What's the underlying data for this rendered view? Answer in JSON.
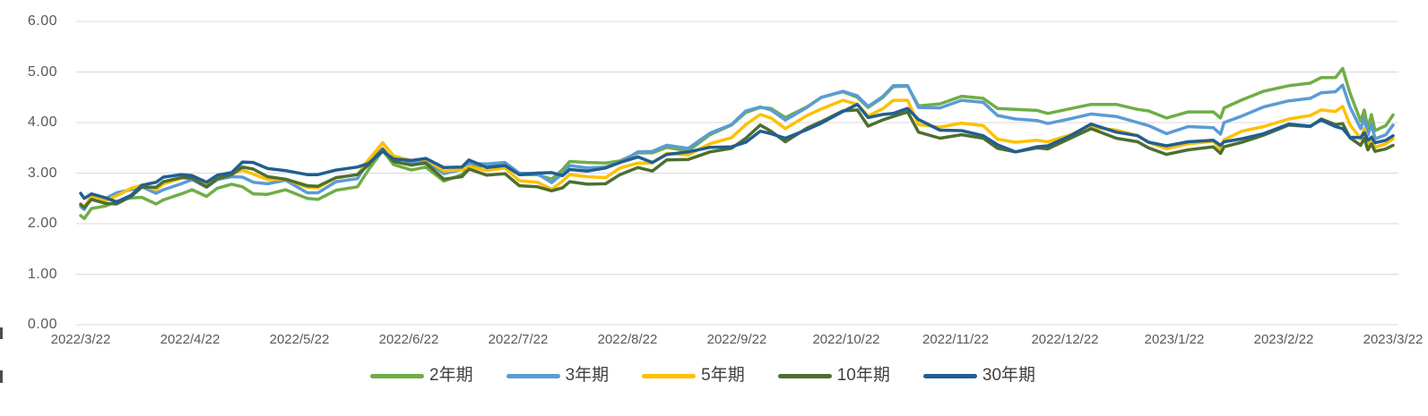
{
  "chart_data": {
    "type": "line",
    "title": "",
    "grid": "horizontal",
    "legend_position": "bottom",
    "ylim": [
      0,
      6
    ],
    "y_ticks": [
      {
        "value": 6,
        "label": "6.00"
      },
      {
        "value": 5,
        "label": "5.00"
      },
      {
        "value": 4,
        "label": "4.00"
      },
      {
        "value": 3,
        "label": "3.00"
      },
      {
        "value": 2,
        "label": "2.00"
      },
      {
        "value": 1,
        "label": "1.00"
      },
      {
        "value": 0,
        "label": "0.00"
      }
    ],
    "x_tick_labels": [
      "2022/3/22",
      "2022/4/22",
      "2022/5/22",
      "2022/6/22",
      "2022/7/22",
      "2022/8/22",
      "2022/9/22",
      "2022/10/22",
      "2022/11/22",
      "2022/12/22",
      "2023/1/22",
      "2023/2/22",
      "2023/3/22"
    ],
    "x_domain_days": [
      0,
      365
    ],
    "days": [
      0,
      1,
      3,
      7,
      10,
      14,
      17,
      21,
      23,
      28,
      31,
      35,
      38,
      42,
      45,
      48,
      52,
      57,
      63,
      66,
      71,
      77,
      80,
      84,
      87,
      92,
      96,
      101,
      106,
      108,
      113,
      118,
      122,
      127,
      131,
      134,
      136,
      141,
      146,
      150,
      155,
      159,
      163,
      169,
      175,
      181,
      185,
      189,
      192,
      196,
      202,
      206,
      212,
      216,
      219,
      223,
      226,
      230,
      233,
      239,
      245,
      251,
      255,
      260,
      266,
      269,
      275,
      281,
      288,
      294,
      297,
      302,
      308,
      315,
      317,
      318,
      323,
      329,
      336,
      342,
      345,
      349,
      351,
      353,
      356,
      357,
      358,
      359,
      360,
      363,
      365
    ],
    "series": [
      {
        "name": "2年期",
        "color": "#70AD47",
        "values": [
          2.16,
          2.1,
          2.3,
          2.35,
          2.44,
          2.51,
          2.52,
          2.39,
          2.47,
          2.59,
          2.67,
          2.54,
          2.7,
          2.78,
          2.73,
          2.59,
          2.58,
          2.67,
          2.5,
          2.48,
          2.66,
          2.73,
          3.06,
          3.45,
          3.17,
          3.06,
          3.12,
          2.84,
          2.97,
          3.12,
          3.15,
          3.17,
          2.97,
          2.97,
          2.88,
          3.07,
          3.23,
          3.21,
          3.2,
          3.24,
          3.4,
          3.4,
          3.51,
          3.44,
          3.76,
          3.95,
          4.2,
          4.3,
          4.28,
          4.1,
          4.31,
          4.5,
          4.61,
          4.5,
          4.3,
          4.49,
          4.71,
          4.72,
          4.33,
          4.37,
          4.52,
          4.48,
          4.28,
          4.26,
          4.24,
          4.18,
          4.27,
          4.36,
          4.36,
          4.26,
          4.23,
          4.09,
          4.21,
          4.21,
          4.09,
          4.29,
          4.45,
          4.62,
          4.73,
          4.78,
          4.89,
          4.89,
          5.07,
          4.59,
          4.03,
          4.25,
          3.89,
          4.16,
          3.84,
          3.94,
          4.15
        ]
      },
      {
        "name": "3年期",
        "color": "#5B9BD5",
        "values": [
          2.34,
          2.28,
          2.53,
          2.5,
          2.61,
          2.67,
          2.73,
          2.6,
          2.67,
          2.79,
          2.87,
          2.72,
          2.87,
          2.93,
          2.92,
          2.82,
          2.79,
          2.86,
          2.61,
          2.61,
          2.83,
          2.89,
          3.23,
          3.6,
          3.34,
          3.2,
          3.25,
          2.99,
          3.07,
          3.19,
          3.18,
          3.21,
          3.0,
          2.99,
          2.81,
          2.99,
          3.15,
          3.1,
          3.12,
          3.21,
          3.42,
          3.43,
          3.55,
          3.49,
          3.79,
          3.96,
          4.23,
          4.31,
          4.25,
          4.05,
          4.3,
          4.5,
          4.62,
          4.53,
          4.32,
          4.51,
          4.73,
          4.73,
          4.3,
          4.29,
          4.44,
          4.4,
          4.14,
          4.07,
          4.04,
          3.98,
          4.07,
          4.17,
          4.12,
          4.0,
          3.94,
          3.78,
          3.92,
          3.9,
          3.77,
          4.0,
          4.13,
          4.31,
          4.43,
          4.48,
          4.59,
          4.61,
          4.74,
          4.31,
          3.88,
          4.09,
          3.75,
          3.97,
          3.68,
          3.76,
          3.95
        ]
      },
      {
        "name": "5年期",
        "color": "#FFC000",
        "values": [
          2.39,
          2.32,
          2.55,
          2.46,
          2.55,
          2.7,
          2.76,
          2.67,
          2.79,
          2.9,
          2.94,
          2.76,
          2.92,
          2.99,
          3.06,
          2.98,
          2.87,
          2.88,
          2.72,
          2.71,
          2.91,
          2.97,
          3.26,
          3.6,
          3.34,
          3.25,
          3.28,
          3.04,
          3.07,
          3.13,
          3.05,
          3.1,
          2.85,
          2.82,
          2.68,
          2.84,
          2.97,
          2.93,
          2.91,
          3.1,
          3.2,
          3.2,
          3.39,
          3.36,
          3.58,
          3.7,
          3.96,
          4.16,
          4.09,
          3.88,
          4.14,
          4.27,
          4.44,
          4.36,
          4.13,
          4.27,
          4.44,
          4.44,
          3.96,
          3.91,
          3.99,
          3.94,
          3.67,
          3.61,
          3.65,
          3.62,
          3.75,
          3.91,
          3.85,
          3.74,
          3.61,
          3.48,
          3.58,
          3.63,
          3.48,
          3.66,
          3.83,
          3.92,
          4.07,
          4.14,
          4.25,
          4.22,
          4.32,
          3.96,
          3.68,
          3.88,
          3.56,
          3.72,
          3.51,
          3.58,
          3.68
        ]
      },
      {
        "name": "10年期",
        "color": "#4D6E30",
        "values": [
          2.38,
          2.32,
          2.48,
          2.4,
          2.39,
          2.54,
          2.72,
          2.72,
          2.83,
          2.91,
          2.9,
          2.73,
          2.89,
          2.97,
          3.12,
          3.08,
          2.93,
          2.88,
          2.75,
          2.74,
          2.91,
          2.97,
          3.16,
          3.48,
          3.23,
          3.16,
          3.2,
          2.88,
          2.93,
          3.08,
          2.96,
          2.99,
          2.75,
          2.73,
          2.65,
          2.71,
          2.83,
          2.78,
          2.79,
          2.97,
          3.11,
          3.04,
          3.26,
          3.27,
          3.42,
          3.49,
          3.69,
          3.95,
          3.83,
          3.62,
          3.89,
          4.02,
          4.23,
          4.25,
          3.93,
          4.05,
          4.12,
          4.21,
          3.81,
          3.69,
          3.76,
          3.69,
          3.49,
          3.42,
          3.5,
          3.48,
          3.68,
          3.88,
          3.69,
          3.62,
          3.5,
          3.37,
          3.46,
          3.52,
          3.39,
          3.52,
          3.61,
          3.75,
          3.95,
          3.92,
          4.07,
          3.96,
          3.98,
          3.7,
          3.55,
          3.69,
          3.46,
          3.58,
          3.43,
          3.48,
          3.55
        ]
      },
      {
        "name": "30年期",
        "color": "#215E91",
        "values": [
          2.6,
          2.5,
          2.59,
          2.51,
          2.43,
          2.56,
          2.76,
          2.82,
          2.92,
          2.97,
          2.95,
          2.82,
          2.96,
          3.01,
          3.22,
          3.21,
          3.09,
          3.05,
          2.97,
          2.97,
          3.06,
          3.12,
          3.19,
          3.43,
          3.28,
          3.25,
          3.29,
          3.11,
          3.12,
          3.26,
          3.11,
          3.15,
          2.97,
          3.0,
          3.01,
          2.95,
          3.07,
          3.04,
          3.1,
          3.21,
          3.32,
          3.21,
          3.37,
          3.42,
          3.51,
          3.52,
          3.61,
          3.83,
          3.78,
          3.69,
          3.86,
          3.99,
          4.22,
          4.36,
          4.1,
          4.16,
          4.18,
          4.28,
          4.06,
          3.85,
          3.84,
          3.74,
          3.56,
          3.42,
          3.52,
          3.54,
          3.73,
          3.97,
          3.81,
          3.74,
          3.61,
          3.54,
          3.62,
          3.65,
          3.55,
          3.62,
          3.68,
          3.78,
          3.97,
          3.93,
          4.05,
          3.92,
          3.88,
          3.71,
          3.7,
          3.8,
          3.65,
          3.71,
          3.6,
          3.65,
          3.74
        ]
      }
    ],
    "styles": {
      "gridline_color": "#D9D9D9",
      "axis_text_color": "#595959",
      "legend_text_color": "#3f3f3f",
      "line_width": 3.5
    }
  }
}
